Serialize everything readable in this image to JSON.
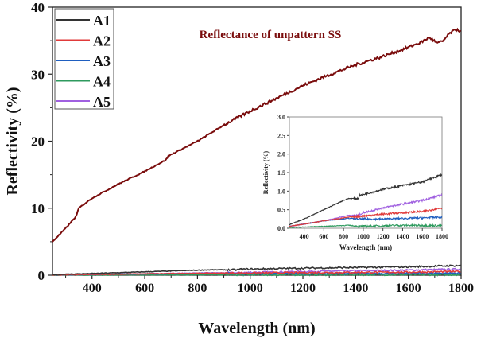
{
  "chart_data": {
    "type": "line",
    "title": "Reflectance of unpattern SS",
    "xlabel": "Wavelength (nm)",
    "ylabel": "Reflectivity (%)",
    "xlim": [
      250,
      1800
    ],
    "ylim": [
      0,
      40
    ],
    "xticks": [
      400,
      600,
      800,
      1000,
      1200,
      1400,
      1600,
      1800
    ],
    "yticks": [
      0,
      10,
      20,
      30,
      40
    ],
    "legend_position": "top-left",
    "main_series": {
      "name": "Reflectance of unpattern SS",
      "color": "#7a0c0c",
      "x": [
        250,
        300,
        340,
        350,
        400,
        500,
        600,
        680,
        690,
        800,
        900,
        1000,
        1100,
        1200,
        1300,
        1400,
        1500,
        1600,
        1650,
        1680,
        1710,
        1730,
        1760,
        1786,
        1800
      ],
      "y": [
        5,
        7,
        8.8,
        10,
        11.5,
        13.6,
        15.5,
        17.2,
        17.8,
        20,
        22.4,
        24.5,
        26.4,
        28.3,
        29.9,
        31.4,
        32.6,
        34.0,
        34.8,
        35.5,
        34.6,
        34.9,
        36.2,
        36.7,
        36.3
      ]
    },
    "series": [
      {
        "name": "A1",
        "color": "#333333",
        "x": [
          250,
          400,
          600,
          800,
          850,
          950,
          960,
          1200,
          1400,
          1600,
          1800
        ],
        "y": [
          0.1,
          0.25,
          0.5,
          0.75,
          0.8,
          0.8,
          0.88,
          1.05,
          1.15,
          1.25,
          1.45
        ]
      },
      {
        "name": "A2",
        "color": "#e03a3a",
        "x": [
          250,
          600,
          850,
          950,
          1200,
          1400,
          1600,
          1800
        ],
        "y": [
          0.05,
          0.2,
          0.3,
          0.32,
          0.38,
          0.42,
          0.45,
          0.55
        ]
      },
      {
        "name": "A3",
        "color": "#1f5fc0",
        "x": [
          250,
          600,
          850,
          950,
          1200,
          1600,
          1800
        ],
        "y": [
          0.05,
          0.2,
          0.27,
          0.25,
          0.25,
          0.28,
          0.3
        ]
      },
      {
        "name": "A4",
        "color": "#2e9a5e",
        "x": [
          250,
          600,
          850,
          950,
          1400,
          1800
        ],
        "y": [
          0.02,
          0.05,
          0.08,
          0.05,
          0.08,
          0.07
        ]
      },
      {
        "name": "A5",
        "color": "#a060e0",
        "x": [
          250,
          600,
          850,
          950,
          1000,
          1200,
          1400,
          1600,
          1800
        ],
        "y": [
          0.05,
          0.2,
          0.35,
          0.35,
          0.42,
          0.55,
          0.65,
          0.75,
          0.9
        ]
      }
    ],
    "inset": {
      "xlabel": "Wavelength (nm)",
      "ylabel": "Reflectivity (%)",
      "xlim": [
        250,
        1800
      ],
      "ylim": [
        0,
        3.0
      ],
      "xticks": [
        400,
        600,
        800,
        1000,
        1200,
        1400,
        1600,
        1800
      ],
      "yticks": [
        "0.0",
        "0.5",
        "1.0",
        "1.5",
        "2.0",
        "2.5",
        "3.0"
      ]
    }
  }
}
